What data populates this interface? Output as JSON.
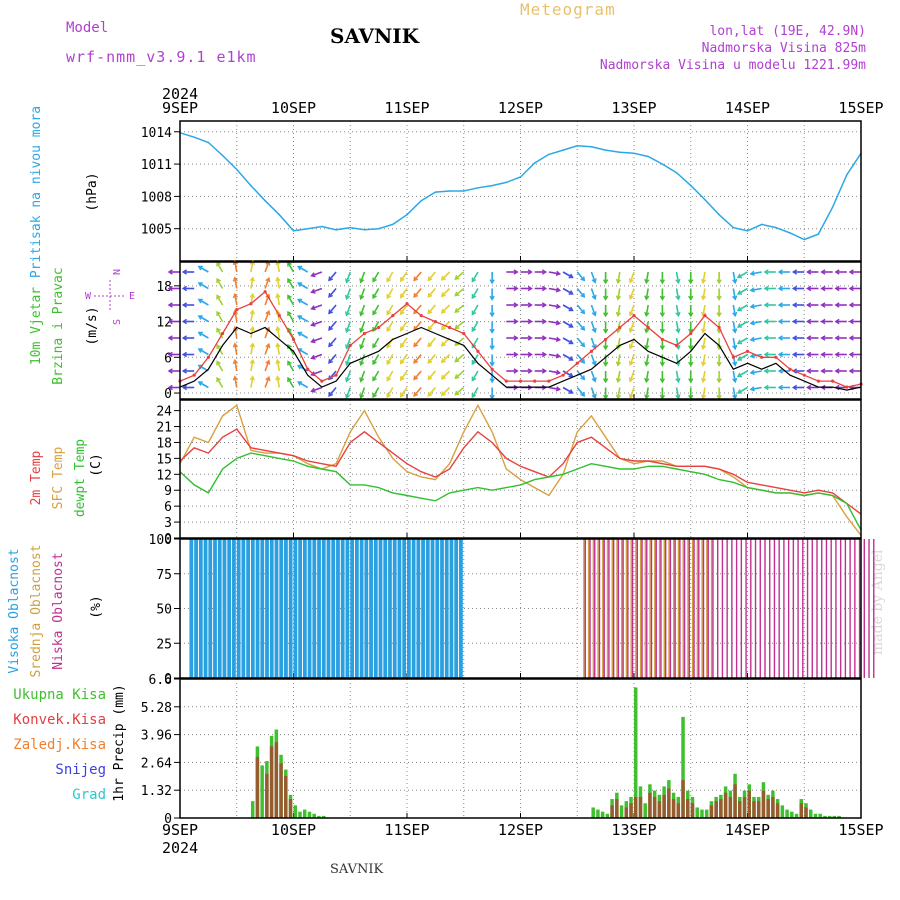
{
  "header": {
    "model_label": "Model",
    "model": "wrf-nmm_v3.9.1 e1km",
    "meteogram": "Meteogram",
    "station": "SAVNIK",
    "lonlat": "lon,lat (19E, 42.9N)",
    "elevation": "Nadmorska Visina 825m",
    "elevation_model": "Nadmorska Visina u modelu 1221.99m"
  },
  "footer_station": "SAVNIK",
  "watermark": "made by Angel",
  "colors": {
    "pressure": "#2aa8e8",
    "temp2m": "#e84040",
    "sfc_temp": "#d8a040",
    "dewpt": "#30c030",
    "high_cloud": "#2aa0e0",
    "mid_cloud": "#d0a040",
    "low_cloud": "#c03090",
    "total_precip": "#40c030",
    "convective_precip": "#e04040",
    "frozen_precip": "#f08030",
    "snow": "#4040e0",
    "hail": "#30c8c8",
    "vertical_labels_purple": "#b040d0"
  },
  "chart_data": [
    {
      "type": "line",
      "panel": "pressure",
      "ylabel_main": "Pritisak na nivou mora",
      "ylabel_unit": "(hPa)",
      "ylim": [
        1002,
        1015
      ],
      "yticks": [
        1005,
        1008,
        1011,
        1014
      ],
      "x_hours": [
        0,
        3,
        6,
        9,
        12,
        15,
        18,
        21,
        24,
        27,
        30,
        33,
        36,
        39,
        42,
        45,
        48,
        51,
        54,
        57,
        60,
        63,
        66,
        69,
        72,
        75,
        78,
        81,
        84,
        87,
        90,
        93,
        96,
        99,
        102,
        105,
        108,
        111,
        114,
        117,
        120,
        123,
        126,
        129,
        132,
        135,
        138,
        141,
        144
      ],
      "values": [
        1013.9,
        1013.5,
        1013.0,
        1011.8,
        1010.5,
        1009.0,
        1007.6,
        1006.3,
        1004.8,
        1005.0,
        1005.2,
        1004.9,
        1005.1,
        1004.9,
        1005.0,
        1005.4,
        1006.3,
        1007.6,
        1008.4,
        1008.5,
        1008.5,
        1008.8,
        1009.0,
        1009.3,
        1009.8,
        1011.1,
        1011.9,
        1012.3,
        1012.7,
        1012.6,
        1012.3,
        1012.1,
        1012.0,
        1011.7,
        1011.0,
        1010.2,
        1009.0,
        1007.7,
        1006.3,
        1005.1,
        1004.8,
        1005.4,
        1005.1,
        1004.6,
        1004.0,
        1004.5,
        1007.0,
        1010.0,
        1012.0
      ]
    },
    {
      "type": "line",
      "panel": "wind",
      "ylabel_main": "10m Vjetar",
      "ylabel_main2": "Brzina i Pravac",
      "ylabel_unit": "(m/s)",
      "compass": {
        "n": "N",
        "w": "W",
        "e": "E",
        "s": "S"
      },
      "ylim": [
        -1,
        22
      ],
      "yticks": [
        0,
        6,
        12,
        18
      ],
      "x_hours": [
        0,
        3,
        6,
        9,
        12,
        15,
        18,
        21,
        24,
        27,
        30,
        33,
        36,
        39,
        42,
        45,
        48,
        51,
        54,
        57,
        60,
        63,
        66,
        69,
        72,
        75,
        78,
        81,
        84,
        87,
        90,
        93,
        96,
        99,
        102,
        105,
        108,
        111,
        114,
        117,
        120,
        123,
        126,
        129,
        132,
        135,
        138,
        141,
        144
      ],
      "series": [
        {
          "role": "speed",
          "values": [
            1,
            2,
            4,
            8,
            11,
            10,
            11,
            9,
            7,
            3,
            1,
            2,
            5,
            6,
            7,
            9,
            10,
            11,
            10,
            9,
            8,
            5,
            3,
            1,
            1,
            1,
            1,
            2,
            3,
            4,
            6,
            8,
            9,
            7,
            6,
            5,
            7,
            10,
            8,
            4,
            5,
            4,
            5,
            3,
            2,
            1,
            1,
            0.5,
            1
          ]
        },
        {
          "role": "gust",
          "values": [
            2,
            3,
            6,
            10,
            14,
            15,
            17,
            13,
            9,
            4,
            2,
            3,
            8,
            10,
            11,
            13,
            15,
            13,
            12,
            11,
            10,
            7,
            4,
            2,
            2,
            2,
            2,
            3,
            5,
            7,
            9,
            11,
            13,
            11,
            9,
            8,
            10,
            13,
            11,
            6,
            7,
            6,
            6,
            4,
            3,
            2,
            2,
            1,
            1.5
          ]
        }
      ],
      "arrow_directions_deg": [
        270,
        270,
        300,
        330,
        350,
        10,
        20,
        350,
        330,
        300,
        250,
        220,
        200,
        200,
        210,
        210,
        215,
        220,
        220,
        225,
        230,
        210,
        180,
        90,
        90,
        90,
        100,
        120,
        140,
        160,
        180,
        190,
        200,
        190,
        180,
        170,
        180,
        190,
        180,
        170,
        240,
        260,
        270,
        270,
        270,
        270,
        270,
        270,
        270
      ]
    },
    {
      "type": "line",
      "panel": "temperature",
      "ylabel_lines": [
        "2m Temp",
        "SFC Temp",
        "dewpt Temp"
      ],
      "ylabel_unit": "(C)",
      "ylim": [
        0,
        26
      ],
      "yticks": [
        0,
        3,
        6,
        9,
        12,
        15,
        18,
        21,
        24
      ],
      "x_hours": [
        0,
        3,
        6,
        9,
        12,
        15,
        18,
        21,
        24,
        27,
        30,
        33,
        36,
        39,
        42,
        45,
        48,
        51,
        54,
        57,
        60,
        63,
        66,
        69,
        72,
        75,
        78,
        81,
        84,
        87,
        90,
        93,
        96,
        99,
        102,
        105,
        108,
        111,
        114,
        117,
        120,
        123,
        126,
        129,
        132,
        135,
        138,
        141,
        144
      ],
      "series": [
        {
          "name": "2m Temp",
          "values": [
            14.5,
            17,
            16,
            19,
            20.5,
            17,
            16.5,
            16,
            15.5,
            14.5,
            14,
            13.5,
            18,
            20,
            18,
            16,
            14,
            12.5,
            11.5,
            13,
            17,
            20,
            18,
            15,
            13.5,
            12.5,
            11.5,
            14,
            18,
            19,
            17,
            15,
            14.5,
            14.5,
            14,
            13.5,
            13.5,
            13.5,
            13,
            12,
            10.5,
            10,
            9.5,
            9,
            8.5,
            9,
            8.5,
            6.5,
            4.5
          ]
        },
        {
          "name": "SFC Temp",
          "values": [
            14,
            19,
            18,
            23,
            25,
            16.5,
            16,
            16,
            15.5,
            14,
            13,
            14,
            20,
            24,
            19,
            15,
            12.5,
            11.5,
            11,
            14,
            20,
            25,
            20,
            13,
            11,
            9.5,
            8,
            12,
            20,
            23,
            19,
            15,
            14,
            14.5,
            14.5,
            13.5,
            13.5,
            13.5,
            13,
            11.5,
            9.5,
            9,
            8.5,
            8.5,
            8,
            8.5,
            8,
            4,
            0.5
          ]
        },
        {
          "name": "dewpt Temp",
          "values": [
            12.5,
            10,
            8.5,
            13,
            15,
            16,
            15.5,
            15,
            14.5,
            13.5,
            13,
            12.5,
            10,
            10,
            9.5,
            8.5,
            8,
            7.5,
            7,
            8.5,
            9,
            9.5,
            9,
            9.5,
            10,
            11,
            11.5,
            12,
            13,
            14,
            13.5,
            13,
            13,
            13.5,
            13.5,
            13,
            12.5,
            12,
            11,
            10.5,
            9.5,
            9,
            8.5,
            8.5,
            8,
            8.5,
            8,
            6.5,
            1.5
          ]
        }
      ]
    },
    {
      "type": "bar",
      "panel": "cloud",
      "ylabel_lines": [
        "Visoka Oblacnost",
        "Srednja Oblacnost",
        "Niska Oblacnost"
      ],
      "ylabel_unit": "(%)",
      "ylim": [
        0,
        100
      ],
      "yticks": [
        0,
        25,
        50,
        75,
        100
      ],
      "series": [
        {
          "name": "Visoka Oblacnost",
          "ranges_hours": [
            [
              2,
              59
            ]
          ],
          "values": [
            100
          ]
        },
        {
          "name": "Srednja Oblacnost",
          "ranges_hours": [
            [
              85,
              112
            ]
          ],
          "values": [
            100
          ]
        },
        {
          "name": "Niska Oblacnost",
          "ranges_hours": [
            [
              85,
              146
            ]
          ],
          "values": [
            100
          ]
        }
      ]
    },
    {
      "type": "bar",
      "panel": "precipitation",
      "ylabel_lines": [
        "Ukupna Kisa",
        "Konvek.Kisa",
        "Zaledj.Kisa",
        "Snijeg",
        "Grad"
      ],
      "ylabel_unit": "1hr Precip (mm)",
      "ylim": [
        0,
        6.6
      ],
      "yticks": [
        0,
        1.32,
        2.64,
        3.96,
        5.28,
        6.6
      ],
      "ytick_labels": [
        "0",
        "1.32",
        "2.64",
        "3.96",
        "5.28",
        "6.6"
      ],
      "series": [
        {
          "name": "Ukupna Kisa",
          "hours": [
            15,
            16,
            17,
            18,
            19,
            20,
            21,
            22,
            23,
            24,
            25,
            26,
            27,
            28,
            29,
            30,
            87,
            88,
            89,
            90,
            91,
            92,
            93,
            94,
            95,
            96,
            97,
            98,
            99,
            100,
            101,
            102,
            103,
            104,
            105,
            106,
            107,
            108,
            109,
            110,
            111,
            112,
            113,
            114,
            115,
            116,
            117,
            118,
            119,
            120,
            121,
            122,
            123,
            124,
            125,
            126,
            127,
            128,
            129,
            130,
            131,
            132,
            133,
            134,
            135,
            136,
            137,
            138,
            139
          ],
          "values": [
            0.8,
            3.4,
            2.5,
            2.7,
            3.9,
            4.2,
            3.0,
            2.3,
            1.1,
            0.6,
            0.3,
            0.4,
            0.3,
            0.2,
            0.1,
            0.1,
            0.5,
            0.4,
            0.3,
            0.2,
            0.9,
            1.2,
            0.6,
            0.8,
            1.0,
            6.2,
            1.5,
            0.7,
            1.6,
            1.3,
            1.1,
            1.5,
            1.8,
            1.2,
            1.0,
            4.8,
            1.3,
            1.0,
            0.5,
            0.4,
            0.4,
            0.8,
            1.0,
            1.1,
            1.5,
            1.3,
            2.1,
            1.0,
            1.3,
            1.6,
            1.0,
            1.0,
            1.7,
            1.1,
            1.3,
            0.9,
            0.6,
            0.4,
            0.3,
            0.2,
            0.9,
            0.7,
            0.4,
            0.2,
            0.2,
            0.1,
            0.1,
            0.1,
            0.1
          ]
        },
        {
          "name": "Konvek.Kisa",
          "hours": [
            16,
            18,
            19,
            20,
            21,
            22,
            23,
            91,
            92,
            94,
            95,
            96,
            97,
            99,
            100,
            101,
            102,
            103,
            104,
            105,
            106,
            107,
            108,
            112,
            113,
            114,
            115,
            116,
            117,
            118,
            119,
            120,
            121,
            122,
            123,
            124,
            125,
            126,
            131,
            132
          ],
          "values": [
            2.9,
            2.1,
            3.4,
            3.6,
            2.6,
            2.0,
            0.9,
            0.6,
            0.9,
            0.5,
            0.7,
            1.0,
            1.0,
            1.2,
            1.0,
            0.8,
            1.1,
            1.4,
            0.9,
            0.7,
            1.8,
            0.9,
            0.7,
            0.6,
            0.8,
            0.9,
            1.2,
            1.0,
            1.6,
            0.8,
            1.0,
            1.3,
            0.8,
            0.8,
            1.3,
            0.9,
            1.0,
            0.7,
            0.7,
            0.5
          ]
        },
        {
          "name": "Zaledj.Kisa",
          "hours": [],
          "values": []
        },
        {
          "name": "Snijeg",
          "hours": [],
          "values": []
        },
        {
          "name": "Grad",
          "hours": [],
          "values": []
        }
      ]
    }
  ],
  "time_axis": {
    "year": "2024",
    "labels": [
      "9SEP",
      "10SEP",
      "11SEP",
      "12SEP",
      "13SEP",
      "14SEP",
      "15SEP"
    ],
    "label_hours": [
      0,
      24,
      48,
      72,
      96,
      120,
      144
    ]
  }
}
